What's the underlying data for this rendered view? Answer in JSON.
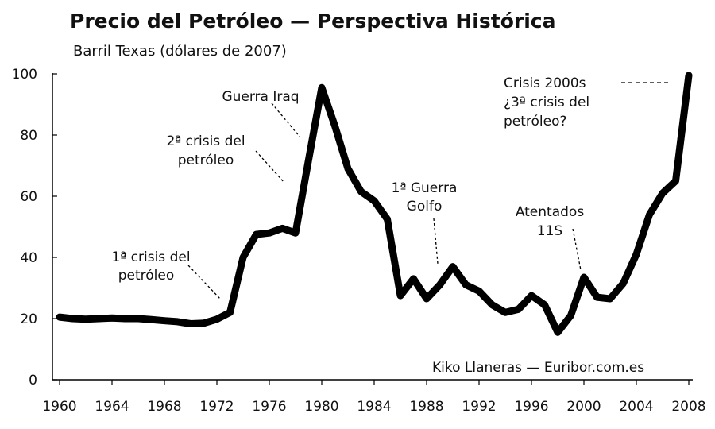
{
  "chart_data": {
    "type": "line",
    "title": "Precio del Petróleo — Perspectiva Histórica",
    "subtitle": "Barril Texas (dólares de 2007)",
    "xlabel": "",
    "ylabel": "",
    "credit": "Kiko Llaneras — Euribor.com.es",
    "xlim": [
      1960,
      2008
    ],
    "ylim": [
      0,
      100
    ],
    "x_ticks": [
      1960,
      1964,
      1968,
      1972,
      1976,
      1980,
      1984,
      1988,
      1992,
      1996,
      2000,
      2004,
      2008
    ],
    "y_ticks": [
      0,
      20,
      40,
      60,
      80,
      100
    ],
    "grid": false,
    "line_color": "#000000",
    "series": [
      {
        "x": [
          1960,
          1961,
          1962,
          1963,
          1964,
          1965,
          1966,
          1967,
          1968,
          1969,
          1970,
          1971,
          1972,
          1973,
          1974,
          1975,
          1976,
          1977,
          1978,
          1979,
          1980,
          1981,
          1982,
          1983,
          1984,
          1985,
          1986,
          1987,
          1988,
          1989,
          1990,
          1991,
          1992,
          1993,
          1994,
          1995,
          1996,
          1997,
          1998,
          1999,
          2000,
          2001,
          2002,
          2003,
          2004,
          2005,
          2006,
          2007,
          2008
        ],
        "y": [
          20.5,
          20,
          19.8,
          20,
          20.2,
          20,
          20,
          19.7,
          19.3,
          19,
          18.3,
          18.5,
          19.8,
          22,
          40,
          47.5,
          48,
          49.5,
          48,
          72,
          95.5,
          83,
          69,
          61.5,
          58.5,
          52.5,
          27.5,
          33,
          26.5,
          31,
          37,
          31,
          29,
          24.5,
          22,
          23,
          27.5,
          24.5,
          15.5,
          21,
          33.5,
          27,
          26.5,
          31.5,
          41,
          54,
          61,
          65,
          99.5
        ]
      }
    ],
    "annotations": [
      {
        "lines": [
          "Guerra Iraq"
        ],
        "year": 1980
      },
      {
        "lines": [
          "2ª crisis del",
          "petróleo"
        ],
        "year": 1979
      },
      {
        "lines": [
          "1ª crisis del",
          "petróleo"
        ],
        "year": 1973
      },
      {
        "lines": [
          "1ª Guerra",
          "Golfo"
        ],
        "year": 1990
      },
      {
        "lines": [
          "Atentados",
          "11S"
        ],
        "year": 2001
      },
      {
        "lines": [
          "Crisis 2000s",
          "¿3ª crisis del",
          "petróleo?"
        ],
        "year": 2008
      }
    ]
  }
}
